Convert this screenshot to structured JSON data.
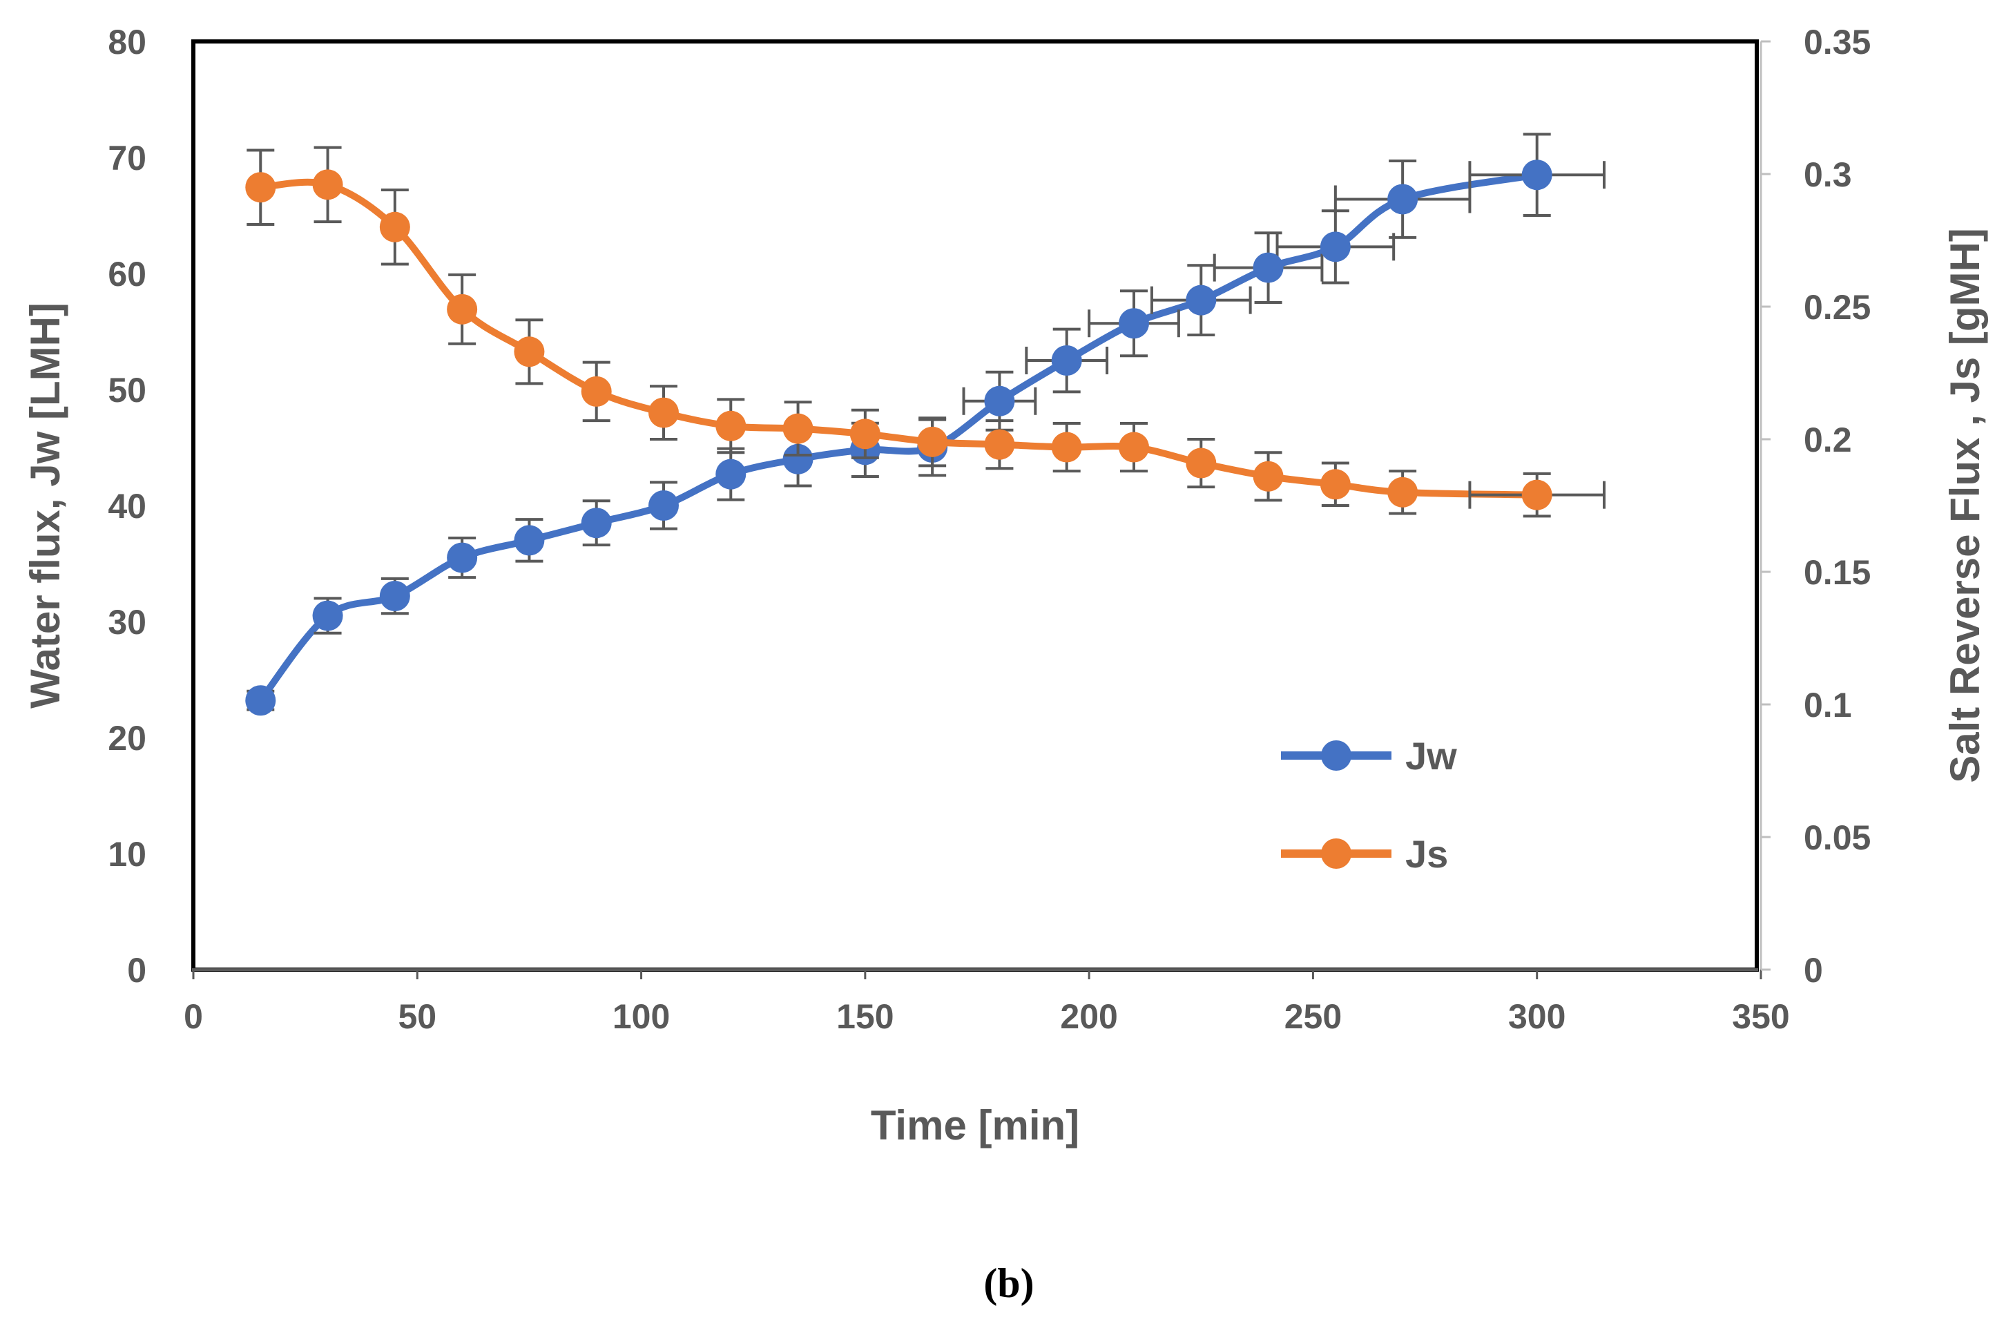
{
  "chart_data": {
    "type": "line",
    "title": "",
    "caption": "(b)",
    "xlabel": "Time [min]",
    "ylabel_left": "Water flux, Jw [LMH]",
    "ylabel_right": "Salt Reverse Flux , Js [gMH]",
    "xlim": [
      0,
      350
    ],
    "ylim_left": [
      0,
      80
    ],
    "ylim_right": [
      0,
      0.35
    ],
    "x_ticks": [
      0,
      50,
      100,
      150,
      200,
      250,
      300,
      350
    ],
    "y_left_ticks": [
      0,
      10,
      20,
      30,
      40,
      50,
      60,
      70,
      80
    ],
    "y_right_ticks": [
      "0",
      "0.05",
      "0.1",
      "0.15",
      "0.2",
      "0.25",
      "0.3",
      "0.35"
    ],
    "grid": false,
    "legend_position": "lower-right",
    "series": [
      {
        "name": "Jw",
        "axis": "left",
        "color": "#4472C4",
        "x": [
          15,
          30,
          45,
          60,
          75,
          90,
          105,
          120,
          135,
          150,
          165,
          180,
          195,
          210,
          225,
          240,
          255,
          270,
          300
        ],
        "y": [
          23.2,
          30.5,
          32.2,
          35.5,
          37.0,
          38.5,
          40.0,
          42.7,
          44.0,
          44.8,
          45.0,
          49.0,
          52.5,
          55.7,
          57.7,
          60.5,
          62.3,
          66.4,
          68.5
        ],
        "y_err": [
          0.8,
          1.5,
          1.5,
          1.7,
          1.8,
          1.9,
          2.0,
          2.2,
          2.3,
          2.3,
          2.4,
          2.5,
          2.7,
          2.8,
          3.0,
          3.0,
          3.1,
          3.3,
          3.5
        ],
        "x_err": [
          0,
          0,
          0,
          0,
          0,
          0,
          0,
          0,
          0,
          0,
          0,
          8,
          9,
          10,
          11,
          12,
          13,
          15,
          15
        ]
      },
      {
        "name": "Js",
        "axis": "right",
        "color": "#ED7D31",
        "x": [
          15,
          30,
          45,
          60,
          75,
          90,
          105,
          120,
          135,
          150,
          165,
          180,
          195,
          210,
          225,
          240,
          255,
          270,
          300
        ],
        "y": [
          0.295,
          0.296,
          0.28,
          0.249,
          0.233,
          0.218,
          0.21,
          0.205,
          0.204,
          0.202,
          0.199,
          0.198,
          0.197,
          0.197,
          0.191,
          0.186,
          0.183,
          0.18,
          0.179
        ],
        "y_err": [
          0.014,
          0.014,
          0.014,
          0.013,
          0.012,
          0.011,
          0.01,
          0.01,
          0.01,
          0.009,
          0.009,
          0.009,
          0.009,
          0.009,
          0.009,
          0.009,
          0.008,
          0.008,
          0.008
        ],
        "x_err": [
          0,
          0,
          0,
          0,
          0,
          0,
          0,
          0,
          0,
          0,
          0,
          0,
          0,
          0,
          0,
          0,
          0,
          0,
          15
        ]
      }
    ]
  }
}
